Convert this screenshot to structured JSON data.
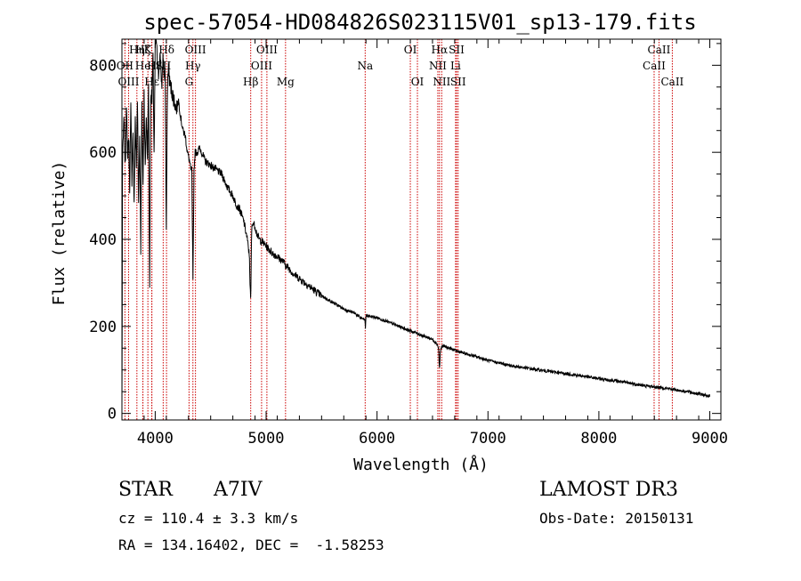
{
  "chart_data": {
    "type": "line",
    "title": "spec-57054-HD084826S023115V01_sp13-179.fits",
    "xlabel": "Wavelength (Å)",
    "ylabel": "Flux (relative)",
    "xlim": [
      3700,
      9100
    ],
    "ylim": [
      -15,
      860
    ],
    "grid": false,
    "xticks": [
      4000,
      5000,
      6000,
      7000,
      8000,
      9000
    ],
    "xtick_labels": [
      "4000",
      "5000",
      "6000",
      "7000",
      "8000",
      "9000"
    ],
    "yticks": [
      0,
      200,
      400,
      600,
      800
    ],
    "ytick_labels": [
      "0",
      "200",
      "400",
      "600",
      "800"
    ],
    "series": [
      {
        "name": "spectrum",
        "x": [
          3700,
          3710,
          3720,
          3730,
          3740,
          3750,
          3760,
          3770,
          3780,
          3790,
          3800,
          3810,
          3820,
          3830,
          3840,
          3850,
          3860,
          3870,
          3880,
          3890,
          3900,
          3910,
          3920,
          3930,
          3940,
          3950,
          3960,
          3970,
          3980,
          3990,
          4000,
          4010,
          4020,
          4030,
          4040,
          4050,
          4060,
          4070,
          4080,
          4090,
          4100,
          4110,
          4120,
          4130,
          4150,
          4170,
          4190,
          4210,
          4230,
          4250,
          4270,
          4290,
          4310,
          4320,
          4330,
          4340,
          4350,
          4360,
          4380,
          4400,
          4420,
          4450,
          4500,
          4550,
          4600,
          4650,
          4700,
          4730,
          4760,
          4800,
          4830,
          4850,
          4855,
          4861,
          4866,
          4870,
          4880,
          4900,
          4920,
          4940,
          4960,
          4980,
          5000,
          5050,
          5100,
          5150,
          5180,
          5200,
          5250,
          5300,
          5400,
          5500,
          5600,
          5700,
          5800,
          5850,
          5890,
          5895,
          5900,
          6000,
          6100,
          6200,
          6300,
          6400,
          6500,
          6540,
          6555,
          6563,
          6570,
          6580,
          6600,
          6700,
          6800,
          6900,
          7000,
          7200,
          7400,
          7600,
          7800,
          8000,
          8200,
          8400,
          8600,
          8800,
          8900,
          9000
        ],
        "y": [
          500,
          620,
          680,
          560,
          720,
          590,
          640,
          520,
          700,
          540,
          650,
          470,
          680,
          560,
          720,
          480,
          640,
          380,
          700,
          520,
          740,
          560,
          690,
          580,
          760,
          300,
          740,
          720,
          820,
          600,
          840,
          860,
          800,
          780,
          820,
          810,
          740,
          820,
          780,
          780,
          420,
          750,
          800,
          760,
          740,
          720,
          700,
          720,
          680,
          650,
          640,
          600,
          580,
          560,
          560,
          300,
          560,
          600,
          600,
          610,
          600,
          580,
          570,
          560,
          550,
          520,
          500,
          480,
          470,
          440,
          400,
          360,
          300,
          250,
          360,
          420,
          440,
          430,
          410,
          400,
          395,
          390,
          385,
          370,
          360,
          350,
          340,
          335,
          320,
          310,
          290,
          270,
          255,
          240,
          230,
          220,
          215,
          195,
          225,
          220,
          210,
          200,
          190,
          180,
          170,
          160,
          150,
          100,
          140,
          152,
          155,
          145,
          137,
          130,
          122,
          110,
          102,
          95,
          88,
          80,
          73,
          64,
          58,
          50,
          45,
          40
        ]
      }
    ],
    "line_labels": [
      {
        "name": "Hη",
        "wl": 3835,
        "row": 1,
        "label": "Hη"
      },
      {
        "name": "OII",
        "wl": 3727,
        "row": 2,
        "label": "OII"
      },
      {
        "name": "OIII",
        "wl": 3760,
        "row": 3,
        "label": "OIII"
      },
      {
        "name": "Hζ",
        "wl": 3889,
        "row": 1,
        "label": "Hζ"
      },
      {
        "name": "He",
        "wl": 3889,
        "row": 2,
        "label": "He"
      },
      {
        "name": "Hε",
        "wl": 3970,
        "row": 3,
        "label": "Hε"
      },
      {
        "name": "K",
        "wl": 3934,
        "row": 1,
        "label": "K"
      },
      {
        "name": "H",
        "wl": 3969,
        "row": 2,
        "label": "H"
      },
      {
        "name": "Hδ",
        "wl": 4102,
        "row": 1,
        "label": "Hδ"
      },
      {
        "name": "SII",
        "wl": 4072,
        "row": 2,
        "label": "SII"
      },
      {
        "name": "OIII",
        "wl": 4363,
        "row": 1,
        "label": "OIII"
      },
      {
        "name": "Hγ",
        "wl": 4340,
        "row": 2,
        "label": "Hγ"
      },
      {
        "name": "G",
        "wl": 4305,
        "row": 3,
        "label": "G"
      },
      {
        "name": "Hβ",
        "wl": 4861,
        "row": 3,
        "label": "Hβ"
      },
      {
        "name": "OIII",
        "wl": 5007,
        "row": 1,
        "label": "OIII"
      },
      {
        "name": "OIII",
        "wl": 4959,
        "row": 2,
        "label": "OIII"
      },
      {
        "name": "Mg",
        "wl": 5175,
        "row": 3,
        "label": "Mg"
      },
      {
        "name": "Na",
        "wl": 5893,
        "row": 2,
        "label": "Na"
      },
      {
        "name": "OI",
        "wl": 6300,
        "row": 1,
        "label": "OI"
      },
      {
        "name": "OI",
        "wl": 6364,
        "row": 3,
        "label": "OI"
      },
      {
        "name": "Hα",
        "wl": 6563,
        "row": 1,
        "label": "Hα"
      },
      {
        "name": "NII",
        "wl": 6548,
        "row": 2,
        "label": "NII"
      },
      {
        "name": "NII",
        "wl": 6583,
        "row": 3,
        "label": "NII"
      },
      {
        "name": "SII",
        "wl": 6717,
        "row": 1,
        "label": "SII"
      },
      {
        "name": "Li",
        "wl": 6708,
        "row": 2,
        "label": "Li"
      },
      {
        "name": "SII",
        "wl": 6731,
        "row": 3,
        "label": "SII"
      },
      {
        "name": "CaII",
        "wl": 8542,
        "row": 1,
        "label": "CaII"
      },
      {
        "name": "CaII",
        "wl": 8498,
        "row": 2,
        "label": "CaII"
      },
      {
        "name": "CaII",
        "wl": 8662,
        "row": 3,
        "label": "CaII"
      }
    ],
    "line_color": "#cc0000"
  },
  "footer": {
    "object_class": "STAR",
    "subclass": "A7IV",
    "survey": "LAMOST DR3",
    "redshift_text": "cz = 110.4 ± 3.3 km/s",
    "obs_date_text": "Obs-Date: 20150131",
    "coords_text": "RA = 134.16402, DEC =  -1.58253"
  }
}
